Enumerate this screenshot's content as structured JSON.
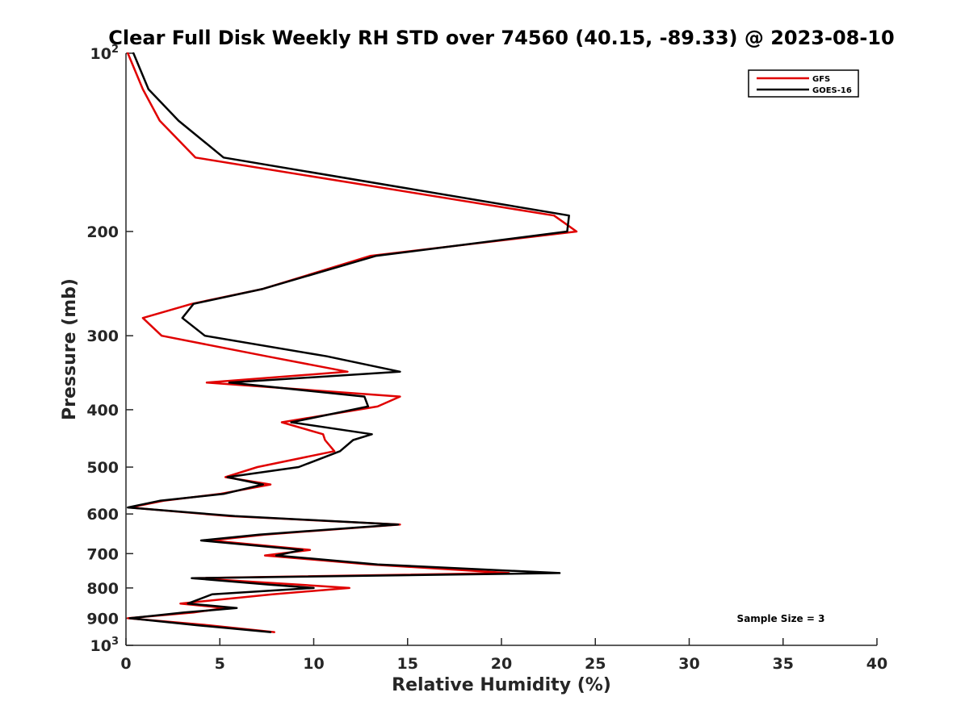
{
  "chart_data": {
    "type": "line",
    "title": "Clear Full Disk Weekly RH STD over 74560 (40.15, -89.33) @ 2023-08-10",
    "xlabel": "Relative Humidity (%)",
    "ylabel": "Pressure (mb)",
    "xlim": [
      0,
      40
    ],
    "ylim": [
      100,
      1000
    ],
    "y_scale": "log",
    "y_reversed": true,
    "grid": false,
    "legend_position": "top-right",
    "xticks": [
      0,
      5,
      10,
      15,
      20,
      25,
      30,
      35,
      40
    ],
    "xtick_labels": [
      "0",
      "5",
      "10",
      "15",
      "20",
      "25",
      "30",
      "35",
      "40"
    ],
    "yticks": [
      100,
      200,
      300,
      400,
      500,
      600,
      700,
      800,
      900,
      1000
    ],
    "ytick_labels": [
      {
        "base": "10",
        "exp": "2"
      },
      {
        "base": "200",
        "exp": ""
      },
      {
        "base": "300",
        "exp": ""
      },
      {
        "base": "400",
        "exp": ""
      },
      {
        "base": "500",
        "exp": ""
      },
      {
        "base": "600",
        "exp": ""
      },
      {
        "base": "700",
        "exp": ""
      },
      {
        "base": "800",
        "exp": ""
      },
      {
        "base": "900",
        "exp": ""
      },
      {
        "base": "10",
        "exp": "3"
      }
    ],
    "annotation": "Sample Size = 3",
    "series": [
      {
        "name": "GFS",
        "color": "#e00000",
        "points": [
          [
            0.1,
            100
          ],
          [
            0.9,
            115
          ],
          [
            1.8,
            130
          ],
          [
            3.7,
            150
          ],
          [
            22.8,
            188
          ],
          [
            24.0,
            200
          ],
          [
            13.0,
            220
          ],
          [
            7.3,
            250
          ],
          [
            3.5,
            265
          ],
          [
            0.9,
            280
          ],
          [
            1.9,
            300
          ],
          [
            7.5,
            325
          ],
          [
            11.8,
            345
          ],
          [
            4.3,
            360
          ],
          [
            14.6,
            380
          ],
          [
            13.4,
            395
          ],
          [
            8.3,
            420
          ],
          [
            10.5,
            440
          ],
          [
            10.6,
            450
          ],
          [
            11.1,
            470
          ],
          [
            7.0,
            500
          ],
          [
            5.3,
            520
          ],
          [
            7.7,
            535
          ],
          [
            5.0,
            555
          ],
          [
            2.0,
            570
          ],
          [
            0.2,
            585
          ],
          [
            5.5,
            605
          ],
          [
            14.6,
            625
          ],
          [
            7.4,
            650
          ],
          [
            4.5,
            665
          ],
          [
            9.8,
            690
          ],
          [
            7.4,
            705
          ],
          [
            13.0,
            730
          ],
          [
            20.4,
            755
          ],
          [
            3.6,
            770
          ],
          [
            9.3,
            790
          ],
          [
            11.9,
            800
          ],
          [
            7.8,
            820
          ],
          [
            2.9,
            850
          ],
          [
            5.3,
            865
          ],
          [
            3.6,
            880
          ],
          [
            0.1,
            900
          ],
          [
            4.4,
            925
          ],
          [
            7.9,
            950
          ]
        ]
      },
      {
        "name": "GOES-16",
        "color": "#000000",
        "points": [
          [
            0.4,
            100
          ],
          [
            1.2,
            115
          ],
          [
            2.8,
            130
          ],
          [
            5.2,
            150
          ],
          [
            23.6,
            188
          ],
          [
            23.5,
            200
          ],
          [
            13.3,
            220
          ],
          [
            7.3,
            250
          ],
          [
            3.6,
            265
          ],
          [
            3.0,
            280
          ],
          [
            4.2,
            300
          ],
          [
            10.7,
            325
          ],
          [
            14.6,
            345
          ],
          [
            5.5,
            360
          ],
          [
            12.7,
            380
          ],
          [
            12.9,
            395
          ],
          [
            8.8,
            420
          ],
          [
            13.1,
            440
          ],
          [
            12.1,
            450
          ],
          [
            11.4,
            470
          ],
          [
            9.2,
            500
          ],
          [
            5.4,
            520
          ],
          [
            7.3,
            535
          ],
          [
            5.2,
            555
          ],
          [
            1.8,
            570
          ],
          [
            0.1,
            585
          ],
          [
            5.8,
            605
          ],
          [
            14.5,
            625
          ],
          [
            7.1,
            650
          ],
          [
            4.0,
            665
          ],
          [
            9.4,
            690
          ],
          [
            8.0,
            705
          ],
          [
            13.4,
            730
          ],
          [
            23.1,
            755
          ],
          [
            3.5,
            770
          ],
          [
            7.7,
            790
          ],
          [
            10.0,
            800
          ],
          [
            4.6,
            820
          ],
          [
            3.3,
            850
          ],
          [
            5.9,
            865
          ],
          [
            3.1,
            880
          ],
          [
            0.2,
            900
          ],
          [
            3.8,
            925
          ],
          [
            7.7,
            950
          ]
        ]
      }
    ]
  }
}
